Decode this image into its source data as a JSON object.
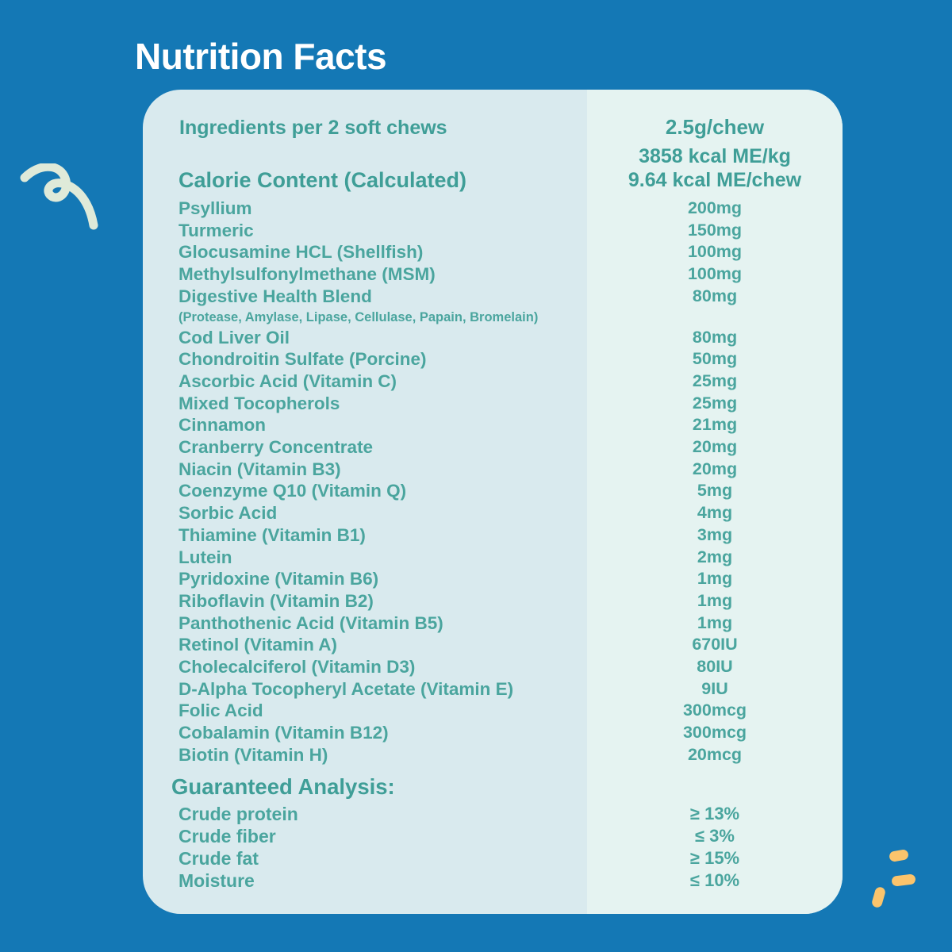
{
  "title": "Nutrition Facts",
  "header": {
    "ingredients_label": "Ingredients per 2 soft chews",
    "serving_size": "2.5g/chew",
    "calorie_label": "Calorie Content (Calculated)",
    "kcal_per_kg": "3858 kcal ME/kg",
    "kcal_per_chew": "9.64 kcal ME/chew"
  },
  "ingredients": [
    {
      "name": "Psyllium",
      "value": "200mg"
    },
    {
      "name": "Turmeric",
      "value": "150mg"
    },
    {
      "name": "Glocusamine HCL (Shellfish)",
      "value": "100mg"
    },
    {
      "name": "Methylsulfonylmethane (MSM)",
      "value": "100mg"
    },
    {
      "name": "Digestive Health Blend",
      "value": "80mg",
      "note": "(Protease, Amylase, Lipase, Cellulase, Papain, Bromelain)"
    },
    {
      "name": "Cod Liver Oil",
      "value": "80mg"
    },
    {
      "name": "Chondroitin Sulfate (Porcine)",
      "value": "50mg"
    },
    {
      "name": "Ascorbic Acid (Vitamin C)",
      "value": "25mg"
    },
    {
      "name": "Mixed Tocopherols",
      "value": "25mg"
    },
    {
      "name": "Cinnamon",
      "value": "21mg"
    },
    {
      "name": "Cranberry Concentrate",
      "value": "20mg"
    },
    {
      "name": "Niacin (Vitamin B3)",
      "value": "20mg"
    },
    {
      "name": "Coenzyme Q10 (Vitamin Q)",
      "value": "5mg"
    },
    {
      "name": "Sorbic Acid",
      "value": "4mg"
    },
    {
      "name": "Thiamine (Vitamin B1)",
      "value": "3mg"
    },
    {
      "name": "Lutein",
      "value": "2mg"
    },
    {
      "name": "Pyridoxine (Vitamin B6)",
      "value": "1mg"
    },
    {
      "name": "Riboflavin (Vitamin B2)",
      "value": "1mg"
    },
    {
      "name": "Panthothenic Acid (Vitamin B5)",
      "value": "1mg"
    },
    {
      "name": "Retinol (Vitamin A)",
      "value": "670IU"
    },
    {
      "name": "Cholecalciferol (Vitamin D3)",
      "value": "80IU"
    },
    {
      "name": "D-Alpha Tocopheryl Acetate (Vitamin E)",
      "value": "9IU"
    },
    {
      "name": "Folic Acid",
      "value": "300mcg"
    },
    {
      "name": "Cobalamin (Vitamin B12)",
      "value": "300mcg"
    },
    {
      "name": "Biotin (Vitamin H)",
      "value": "20mcg"
    }
  ],
  "guaranteed_analysis": {
    "heading": "Guaranteed Analysis:",
    "rows": [
      {
        "name": "Crude protein",
        "value": "≥ 13%"
      },
      {
        "name": "Crude fiber",
        "value": "≤ 3%"
      },
      {
        "name": "Crude fat",
        "value": "≥ 15%"
      },
      {
        "name": "Moisture",
        "value": "≤ 10%"
      }
    ]
  },
  "colors": {
    "background_blue": "#1478b5",
    "card_left_bg": "#d9eaee",
    "card_right_bg": "#e5f3f1",
    "text_teal": "#4aa59e",
    "heading_teal": "#3f9e97",
    "title_white": "#ffffff",
    "squiggle_cream": "#dfead9",
    "dash_yellow": "#fbc46c"
  },
  "decorations": {
    "squiggle": "curly-line-doodle",
    "dashes": "three-dash-sparkle"
  }
}
